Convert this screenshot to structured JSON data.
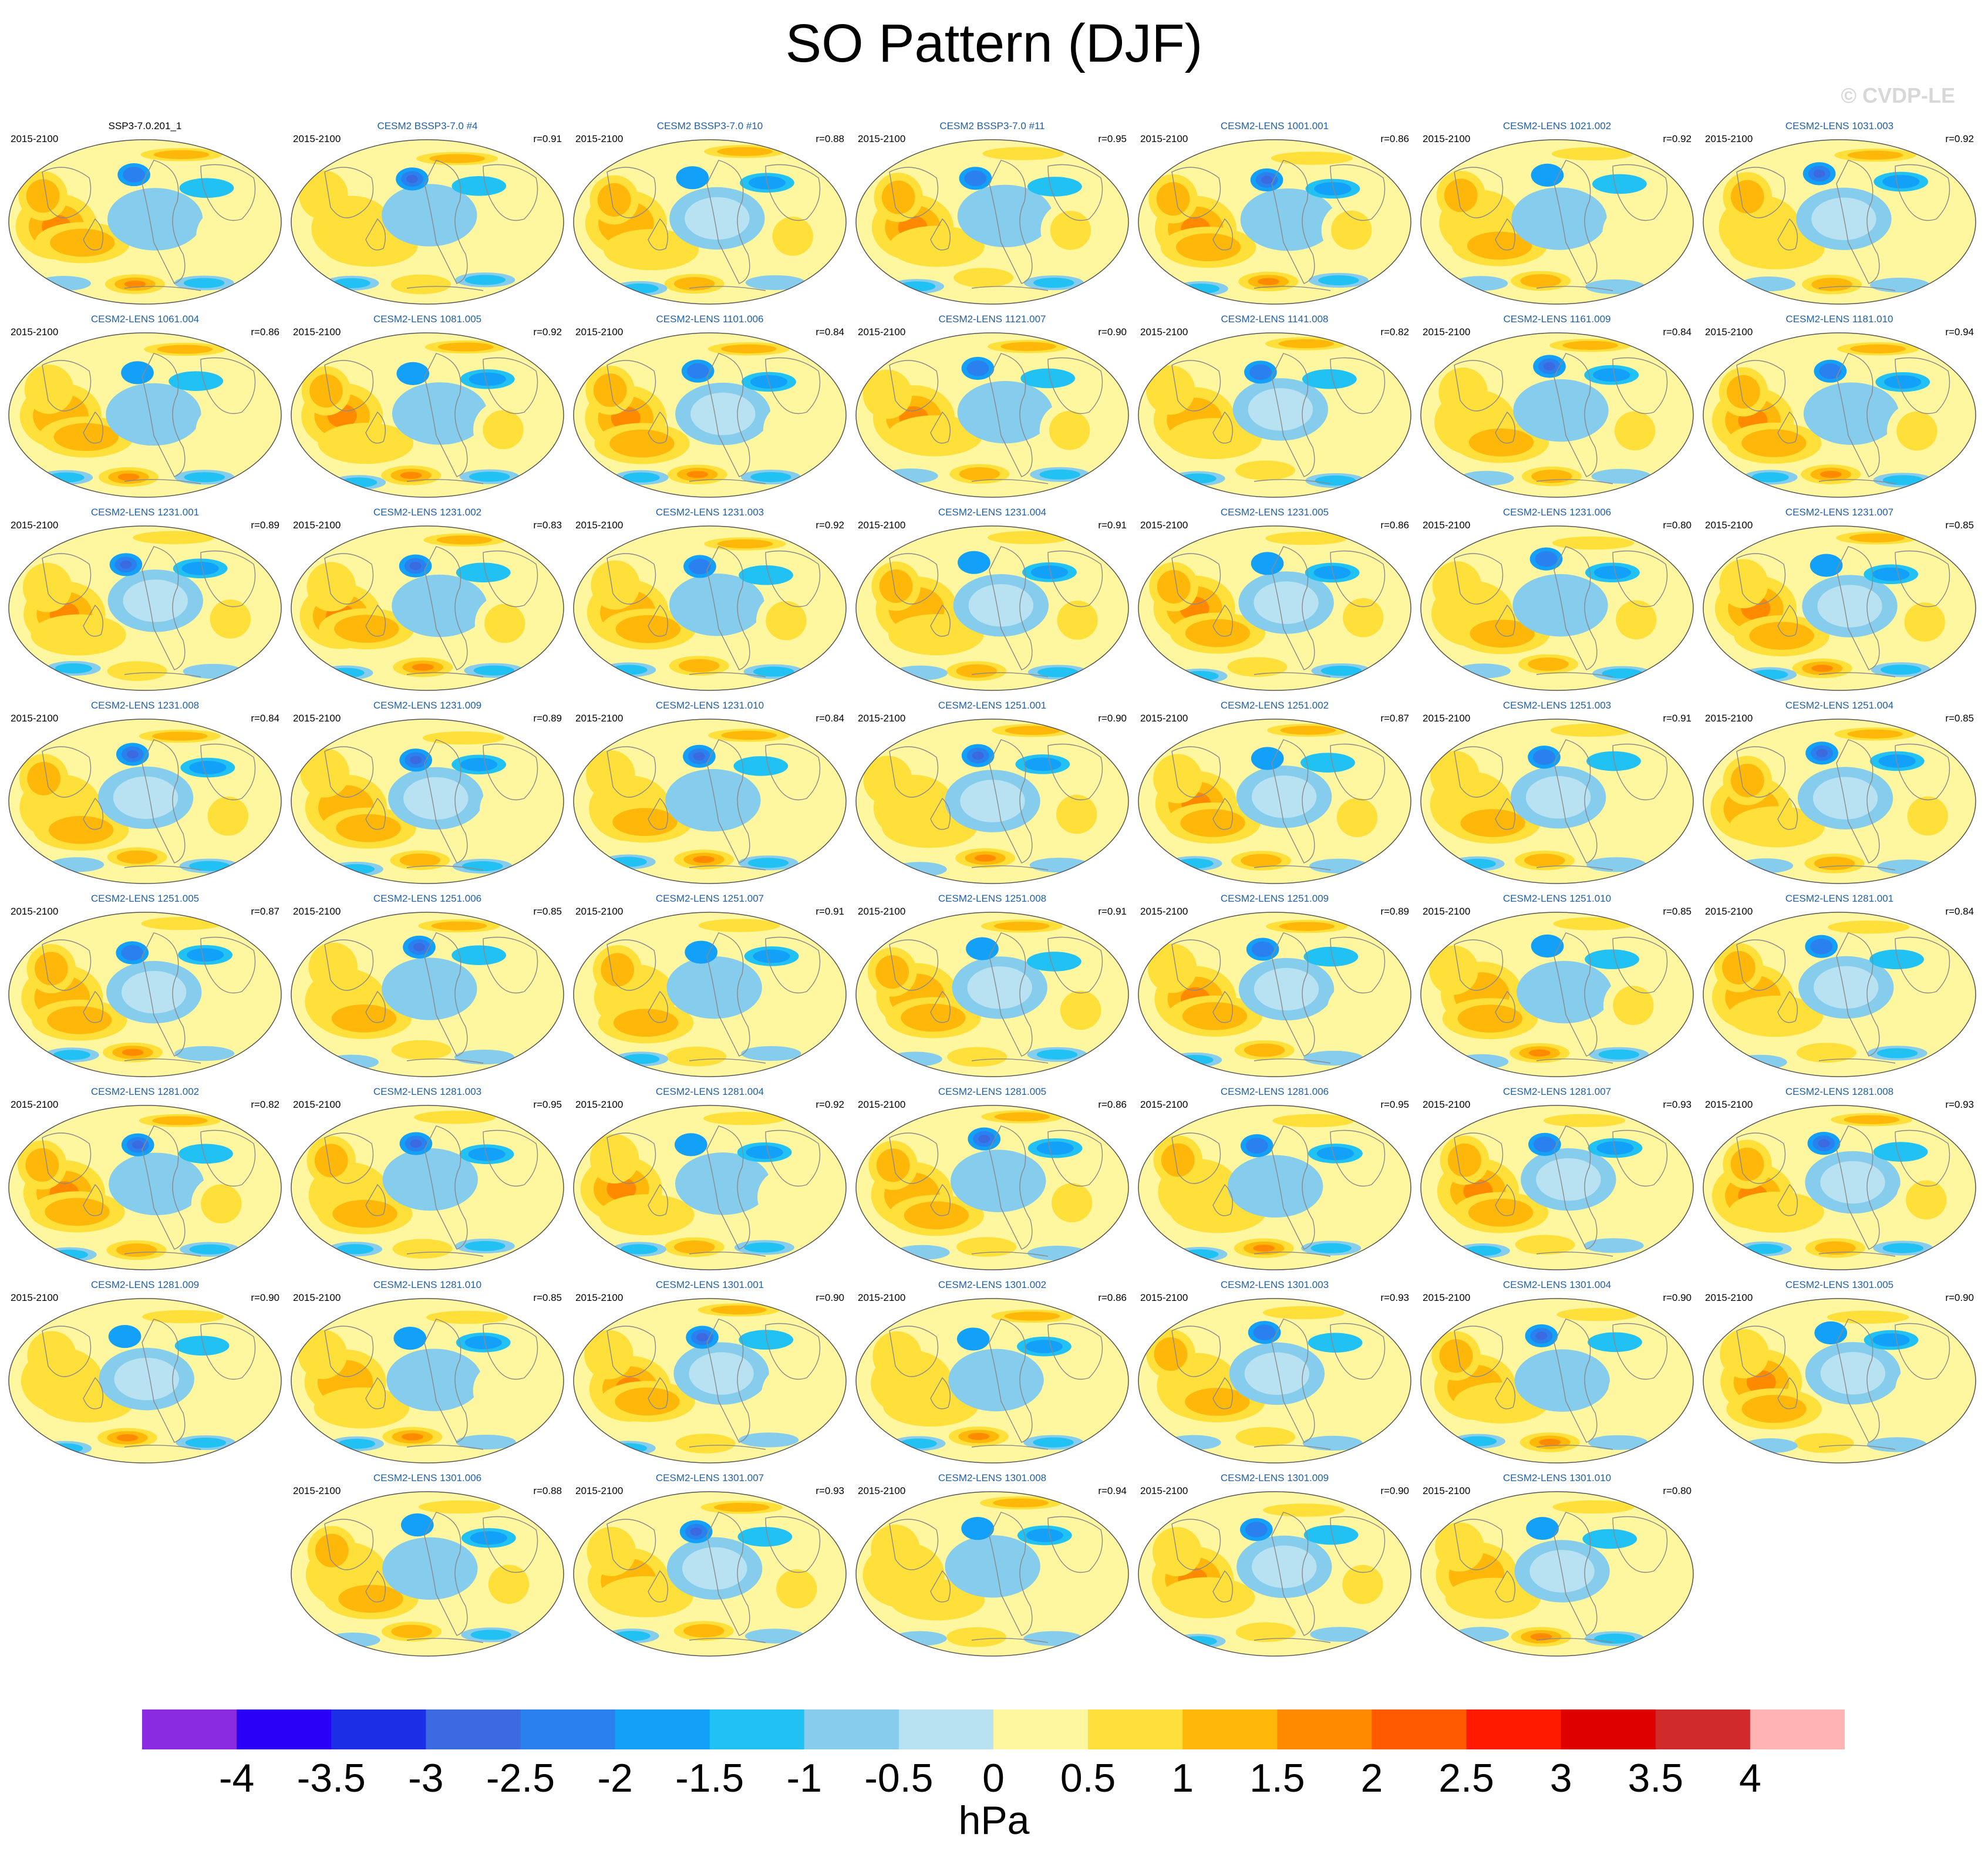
{
  "title": "SO Pattern (DJF)",
  "watermark": "© CVDP-LE",
  "chart_data": {
    "type": "heatmap",
    "title": "SO Pattern (DJF)",
    "period": "2015-2100",
    "units": "hPa",
    "colorbar": {
      "ticks": [
        "-4",
        "-3.5",
        "-3",
        "-2.5",
        "-2",
        "-1.5",
        "-1",
        "-0.5",
        "0",
        "0.5",
        "1",
        "1.5",
        "2",
        "2.5",
        "3",
        "3.5",
        "4"
      ],
      "colors": [
        "#8a2be2",
        "#2b00f7",
        "#1c2fe6",
        "#3b6ae0",
        "#2b80f0",
        "#12a0f8",
        "#22c1f4",
        "#86ccec",
        "#b8e2f2",
        "#fef7a0",
        "#ffe03a",
        "#ffb80a",
        "#ff8a00",
        "#ff5a00",
        "#ff1a00",
        "#de0000",
        "#d02a2a",
        "#ffb4b4"
      ]
    },
    "panels": [
      {
        "name": "SSP3-7.0.201_1",
        "period": "2015-2100",
        "r": ""
      },
      {
        "name": "CESM2 BSSP3-7.0 #4",
        "period": "2015-2100",
        "r": "r=0.91"
      },
      {
        "name": "CESM2 BSSP3-7.0 #10",
        "period": "2015-2100",
        "r": "r=0.88"
      },
      {
        "name": "CESM2 BSSP3-7.0 #11",
        "period": "2015-2100",
        "r": "r=0.95"
      },
      {
        "name": "CESM2-LENS 1001.001",
        "period": "2015-2100",
        "r": "r=0.86"
      },
      {
        "name": "CESM2-LENS 1021.002",
        "period": "2015-2100",
        "r": "r=0.92"
      },
      {
        "name": "CESM2-LENS 1031.003",
        "period": "2015-2100",
        "r": "r=0.92"
      },
      {
        "name": "CESM2-LENS 1061.004",
        "period": "2015-2100",
        "r": "r=0.86"
      },
      {
        "name": "CESM2-LENS 1081.005",
        "period": "2015-2100",
        "r": "r=0.92"
      },
      {
        "name": "CESM2-LENS 1101.006",
        "period": "2015-2100",
        "r": "r=0.84"
      },
      {
        "name": "CESM2-LENS 1121.007",
        "period": "2015-2100",
        "r": "r=0.90"
      },
      {
        "name": "CESM2-LENS 1141.008",
        "period": "2015-2100",
        "r": "r=0.82"
      },
      {
        "name": "CESM2-LENS 1161.009",
        "period": "2015-2100",
        "r": "r=0.84"
      },
      {
        "name": "CESM2-LENS 1181.010",
        "period": "2015-2100",
        "r": "r=0.94"
      },
      {
        "name": "CESM2-LENS 1231.001",
        "period": "2015-2100",
        "r": "r=0.89"
      },
      {
        "name": "CESM2-LENS 1231.002",
        "period": "2015-2100",
        "r": "r=0.83"
      },
      {
        "name": "CESM2-LENS 1231.003",
        "period": "2015-2100",
        "r": "r=0.92"
      },
      {
        "name": "CESM2-LENS 1231.004",
        "period": "2015-2100",
        "r": "r=0.91"
      },
      {
        "name": "CESM2-LENS 1231.005",
        "period": "2015-2100",
        "r": "r=0.86"
      },
      {
        "name": "CESM2-LENS 1231.006",
        "period": "2015-2100",
        "r": "r=0.80"
      },
      {
        "name": "CESM2-LENS 1231.007",
        "period": "2015-2100",
        "r": "r=0.85"
      },
      {
        "name": "CESM2-LENS 1231.008",
        "period": "2015-2100",
        "r": "r=0.84"
      },
      {
        "name": "CESM2-LENS 1231.009",
        "period": "2015-2100",
        "r": "r=0.89"
      },
      {
        "name": "CESM2-LENS 1231.010",
        "period": "2015-2100",
        "r": "r=0.84"
      },
      {
        "name": "CESM2-LENS 1251.001",
        "period": "2015-2100",
        "r": "r=0.90"
      },
      {
        "name": "CESM2-LENS 1251.002",
        "period": "2015-2100",
        "r": "r=0.87"
      },
      {
        "name": "CESM2-LENS 1251.003",
        "period": "2015-2100",
        "r": "r=0.91"
      },
      {
        "name": "CESM2-LENS 1251.004",
        "period": "2015-2100",
        "r": "r=0.85"
      },
      {
        "name": "CESM2-LENS 1251.005",
        "period": "2015-2100",
        "r": "r=0.87"
      },
      {
        "name": "CESM2-LENS 1251.006",
        "period": "2015-2100",
        "r": "r=0.85"
      },
      {
        "name": "CESM2-LENS 1251.007",
        "period": "2015-2100",
        "r": "r=0.91"
      },
      {
        "name": "CESM2-LENS 1251.008",
        "period": "2015-2100",
        "r": "r=0.91"
      },
      {
        "name": "CESM2-LENS 1251.009",
        "period": "2015-2100",
        "r": "r=0.89"
      },
      {
        "name": "CESM2-LENS 1251.010",
        "period": "2015-2100",
        "r": "r=0.85"
      },
      {
        "name": "CESM2-LENS 1281.001",
        "period": "2015-2100",
        "r": "r=0.84"
      },
      {
        "name": "CESM2-LENS 1281.002",
        "period": "2015-2100",
        "r": "r=0.82"
      },
      {
        "name": "CESM2-LENS 1281.003",
        "period": "2015-2100",
        "r": "r=0.95"
      },
      {
        "name": "CESM2-LENS 1281.004",
        "period": "2015-2100",
        "r": "r=0.92"
      },
      {
        "name": "CESM2-LENS 1281.005",
        "period": "2015-2100",
        "r": "r=0.86"
      },
      {
        "name": "CESM2-LENS 1281.006",
        "period": "2015-2100",
        "r": "r=0.95"
      },
      {
        "name": "CESM2-LENS 1281.007",
        "period": "2015-2100",
        "r": "r=0.93"
      },
      {
        "name": "CESM2-LENS 1281.008",
        "period": "2015-2100",
        "r": "r=0.93"
      },
      {
        "name": "CESM2-LENS 1281.009",
        "period": "2015-2100",
        "r": "r=0.90"
      },
      {
        "name": "CESM2-LENS 1281.010",
        "period": "2015-2100",
        "r": "r=0.85"
      },
      {
        "name": "CESM2-LENS 1301.001",
        "period": "2015-2100",
        "r": "r=0.90"
      },
      {
        "name": "CESM2-LENS 1301.002",
        "period": "2015-2100",
        "r": "r=0.86"
      },
      {
        "name": "CESM2-LENS 1301.003",
        "period": "2015-2100",
        "r": "r=0.93"
      },
      {
        "name": "CESM2-LENS 1301.004",
        "period": "2015-2100",
        "r": "r=0.90"
      },
      {
        "name": "CESM2-LENS 1301.005",
        "period": "2015-2100",
        "r": "r=0.90"
      },
      {
        "name": "CESM2-LENS 1301.006",
        "period": "2015-2100",
        "r": "r=0.88"
      },
      {
        "name": "CESM2-LENS 1301.007",
        "period": "2015-2100",
        "r": "r=0.93"
      },
      {
        "name": "CESM2-LENS 1301.008",
        "period": "2015-2100",
        "r": "r=0.94"
      },
      {
        "name": "CESM2-LENS 1301.009",
        "period": "2015-2100",
        "r": "r=0.90"
      },
      {
        "name": "CESM2-LENS 1301.010",
        "period": "2015-2100",
        "r": "r=0.80"
      }
    ]
  }
}
